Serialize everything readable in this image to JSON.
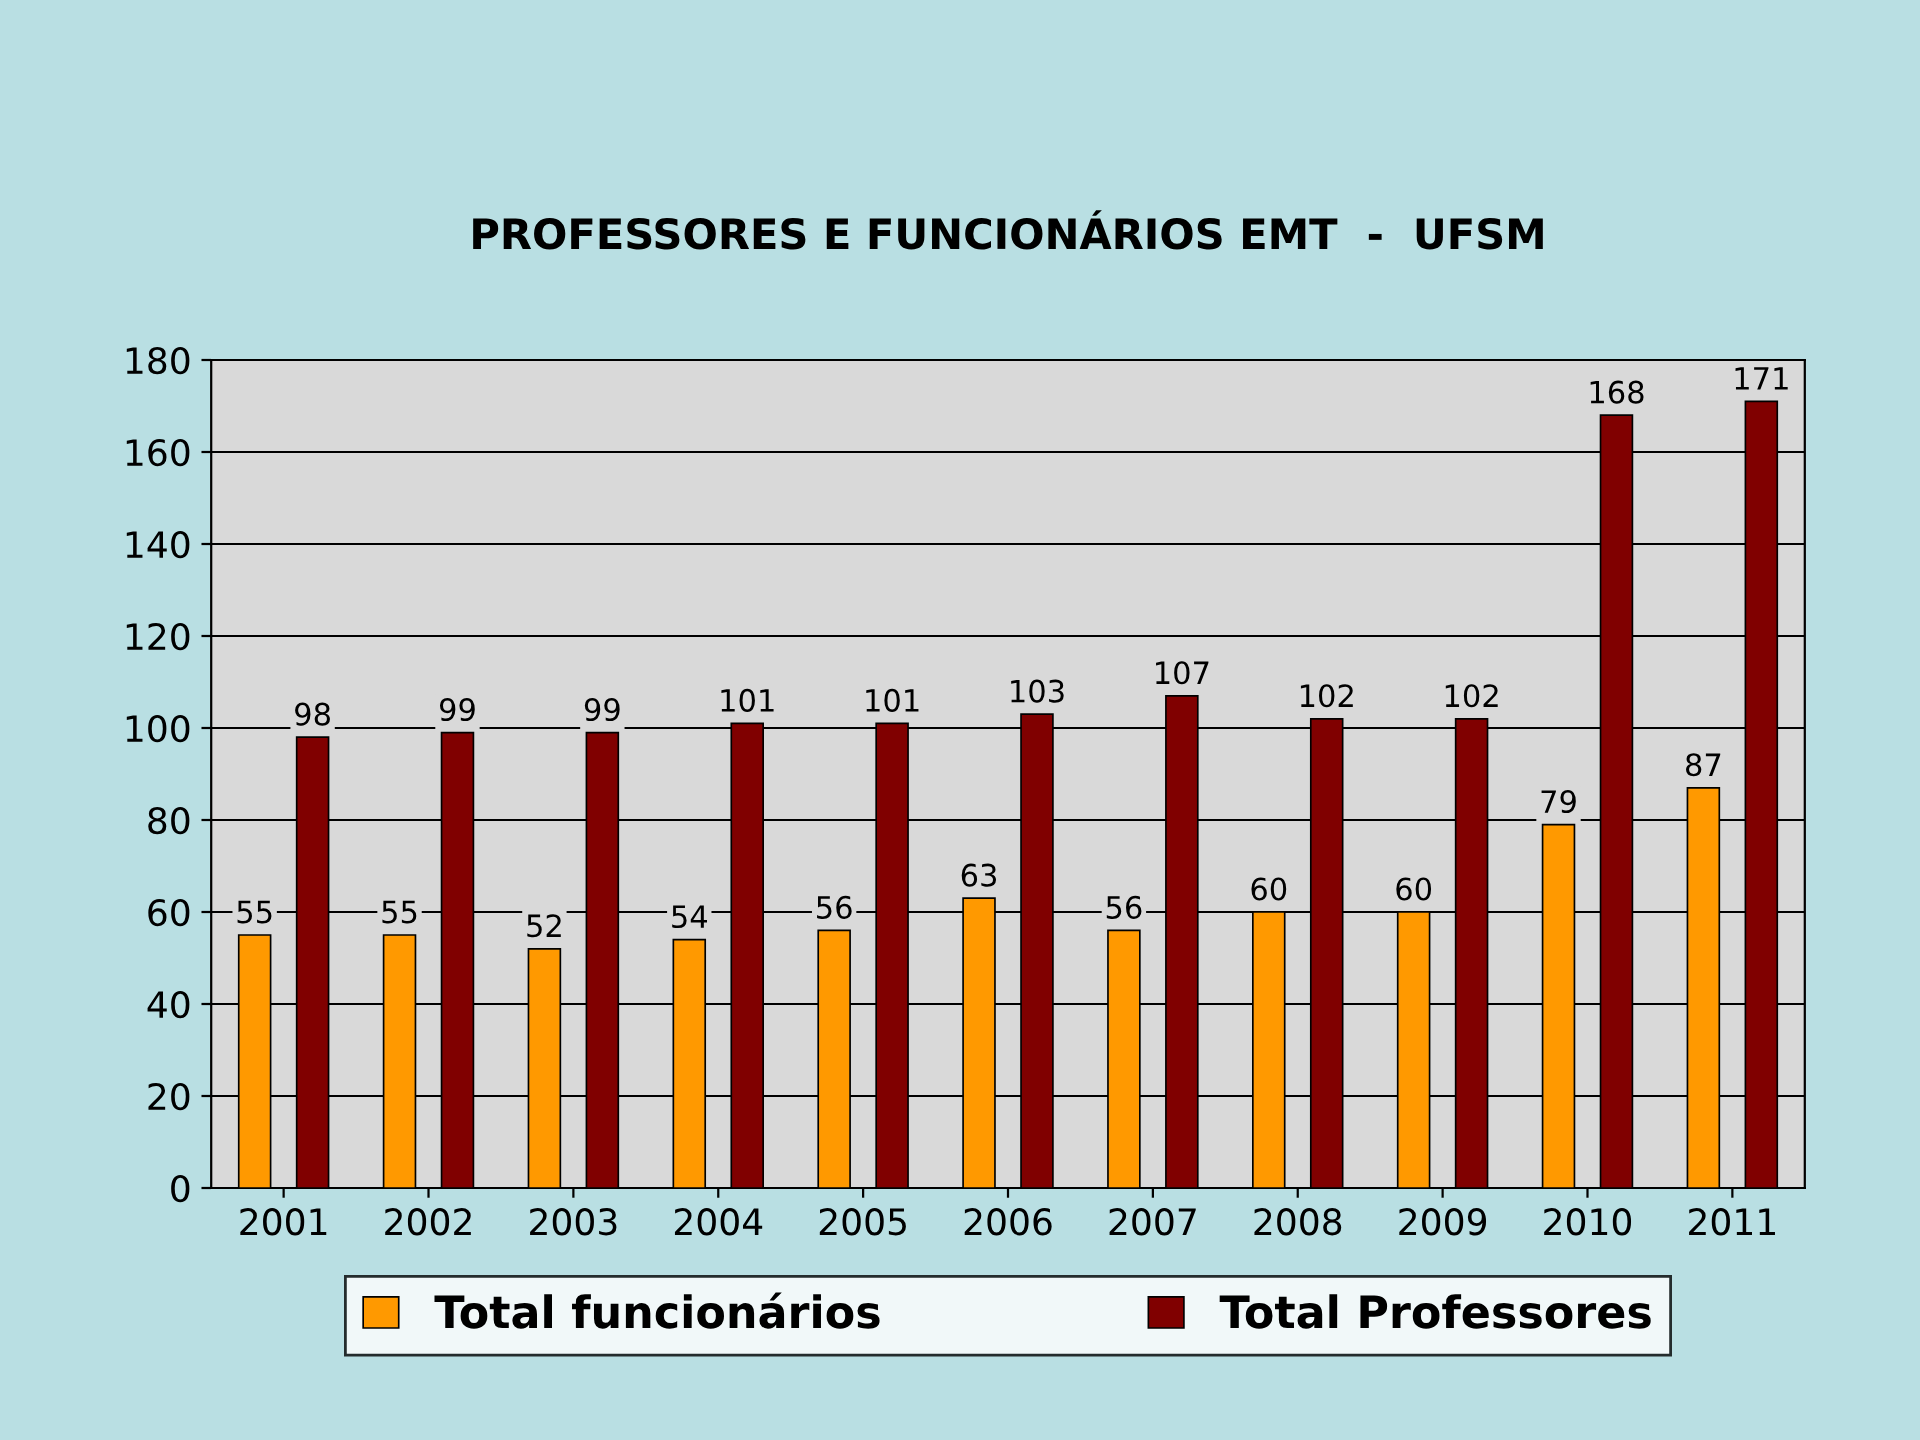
{
  "chart_data": {
    "type": "bar",
    "title": "PROFESSORES E FUNCIONÁRIOS EMT  -  UFSM",
    "categories": [
      "2001",
      "2002",
      "2003",
      "2004",
      "2005",
      "2006",
      "2007",
      "2008",
      "2009",
      "2010",
      "2011"
    ],
    "series": [
      {
        "name": "Total funcionários",
        "color": "#ff9900",
        "values": [
          55,
          55,
          52,
          54,
          56,
          63,
          56,
          60,
          60,
          79,
          87
        ]
      },
      {
        "name": "Total Professores",
        "color": "#800000",
        "values": [
          98,
          99,
          99,
          101,
          101,
          103,
          107,
          102,
          102,
          168,
          171
        ]
      }
    ],
    "ylim": [
      0,
      180
    ],
    "yticks": [
      0,
      20,
      40,
      60,
      80,
      100,
      120,
      140,
      160,
      180
    ],
    "grid": "y",
    "legend": "bottom",
    "data_labels": true
  }
}
